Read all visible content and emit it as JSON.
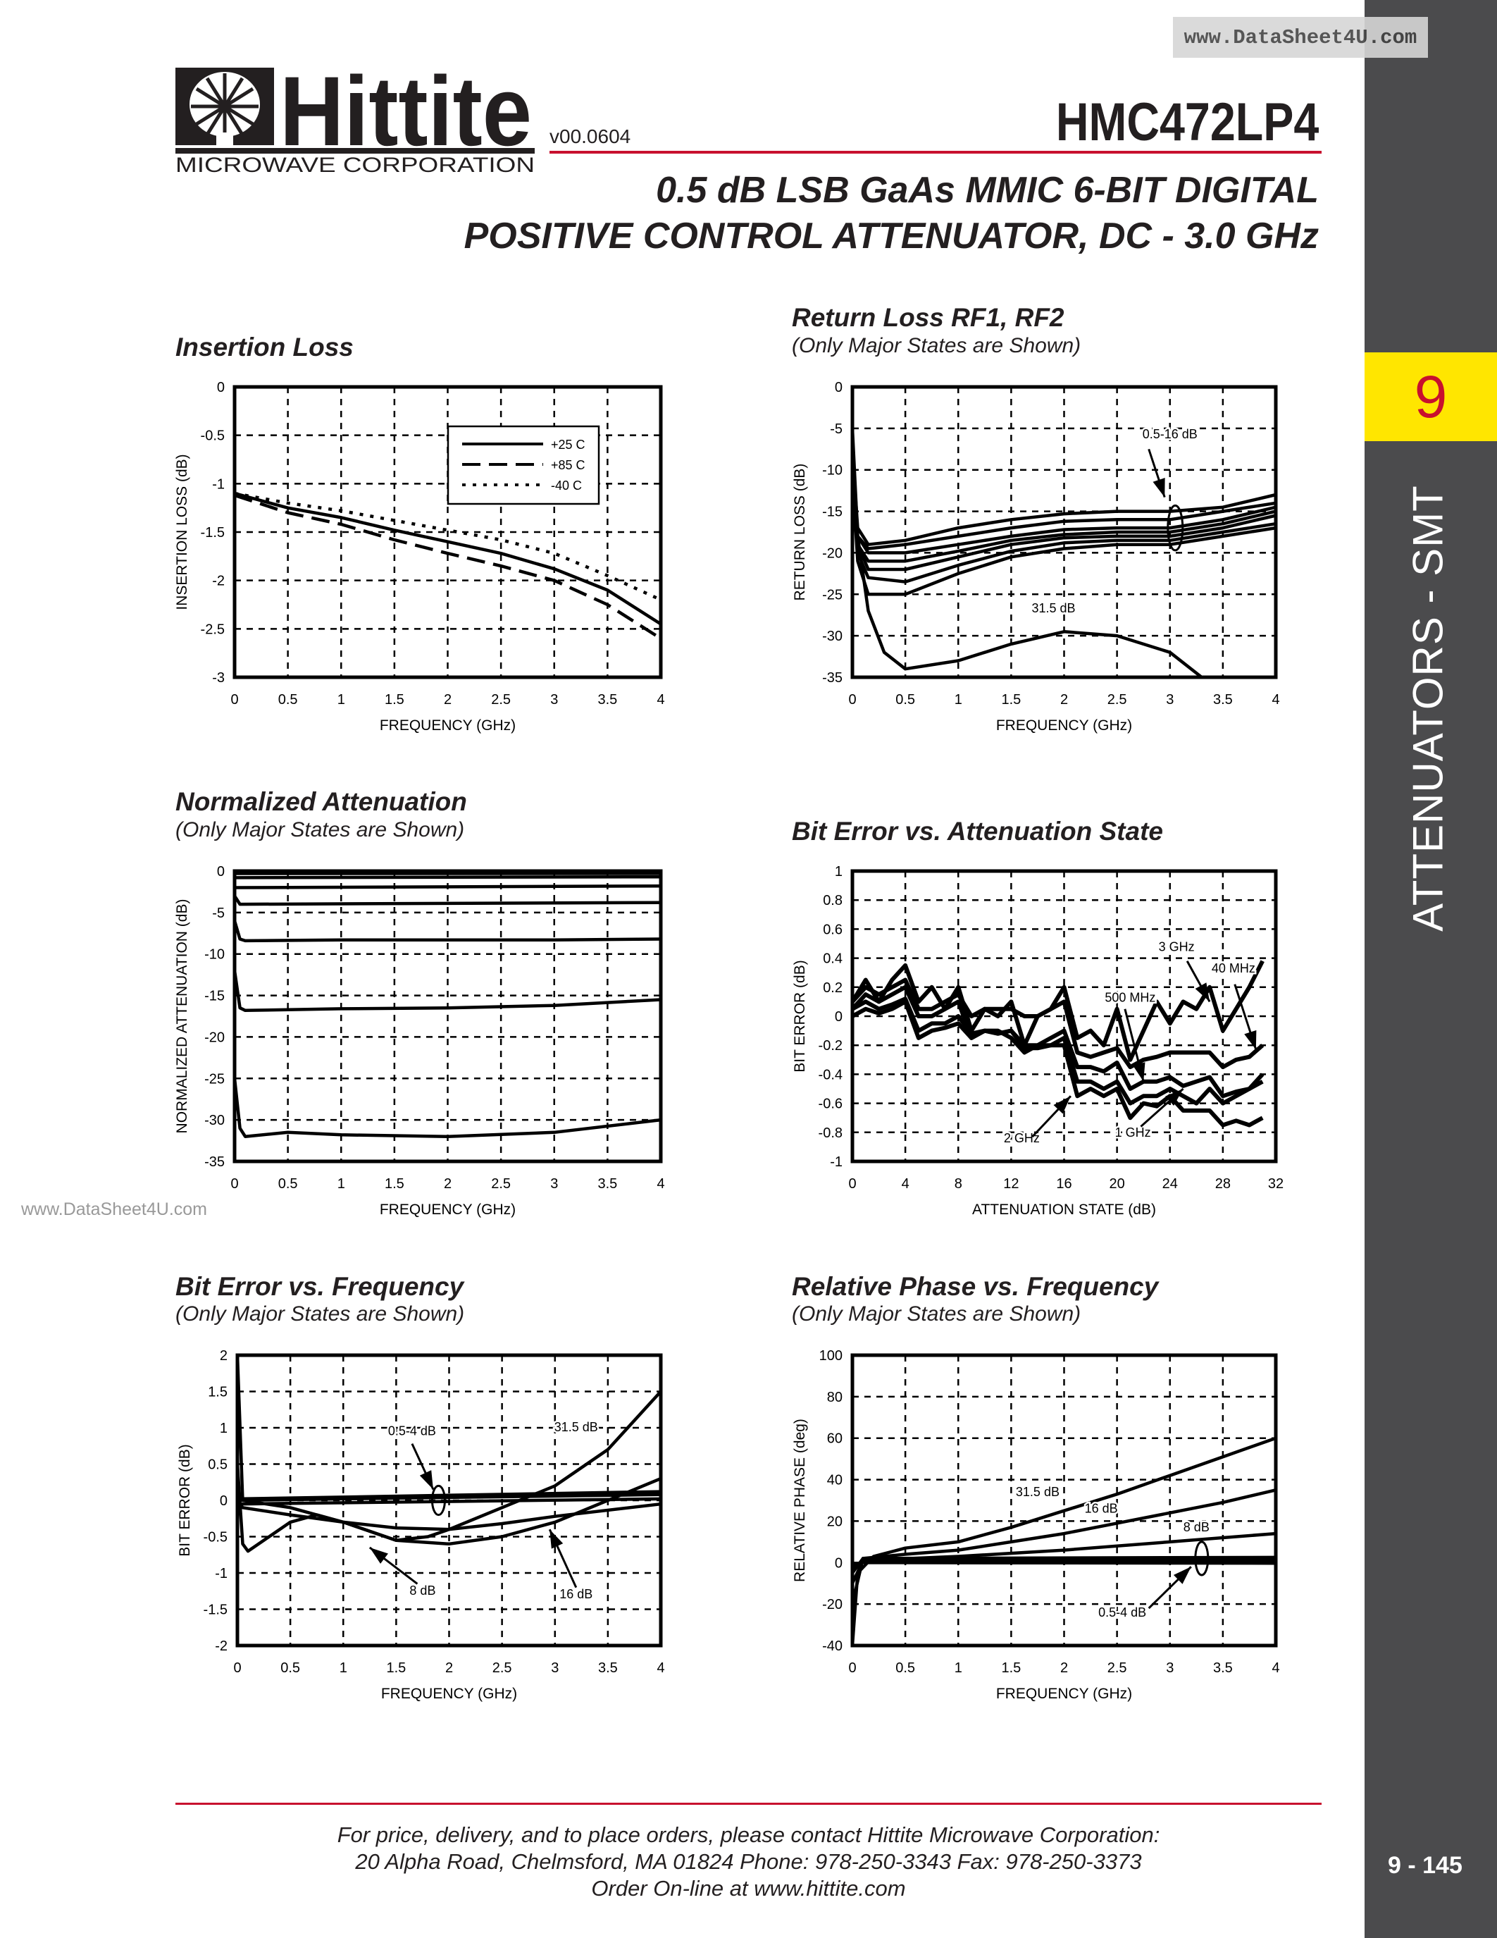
{
  "header": {
    "logo_text": "Hittite",
    "logo_subtext": "MICROWAVE CORPORATION",
    "version": "v00.0604",
    "part_number": "HMC472LP4",
    "title_line1": "0.5 dB LSB GaAs MMIC 6-BIT DIGITAL",
    "title_line2": "POSITIVE CONTROL ATTENUATOR, DC - 3.0 GHz"
  },
  "watermark": "www.DataSheet4U.com",
  "sidebar": {
    "section_number": "9",
    "section_label": "ATTENUATORS - SMT",
    "page_number": "9 - 145",
    "section_color": "#ffe600",
    "bar_color": "#4b4b4d"
  },
  "footer": {
    "line1": "For price, delivery, and to place orders, please contact Hittite Microwave Corporation:",
    "line2": "20 Alpha Road, Chelmsford, MA 01824 Phone: 978-250-3343  Fax: 978-250-3373",
    "line3": "Order On-line at www.hittite.com"
  },
  "chart_data": [
    {
      "title": "Insertion Loss",
      "subtitle": "",
      "type": "line",
      "xlabel": "FREQUENCY (GHz)",
      "ylabel": "INSERTION LOSS (dB)",
      "xlim": [
        0,
        4
      ],
      "ylim": [
        -3,
        0
      ],
      "grid": true,
      "xticks": [
        "0",
        "0.5",
        "1",
        "1.5",
        "2",
        "2.5",
        "3",
        "3.5",
        "4"
      ],
      "yticks": [
        "0",
        "-0.5",
        "-1",
        "-1.5",
        "-2",
        "-2.5",
        "-3"
      ],
      "legend": "top-right",
      "series": [
        {
          "name": "+25 C",
          "style": "solid",
          "x": [
            0,
            0.5,
            1,
            1.5,
            2,
            2.5,
            3,
            3.5,
            4
          ],
          "y": [
            -1.1,
            -1.25,
            -1.35,
            -1.48,
            -1.6,
            -1.72,
            -1.88,
            -2.1,
            -2.45
          ]
        },
        {
          "name": "+85 C",
          "style": "dashed",
          "x": [
            0,
            0.5,
            1,
            1.5,
            2,
            2.5,
            3,
            3.5,
            4
          ],
          "y": [
            -1.12,
            -1.3,
            -1.42,
            -1.58,
            -1.72,
            -1.85,
            -2.0,
            -2.25,
            -2.6
          ]
        },
        {
          "name": "-40 C",
          "style": "dotted",
          "x": [
            0,
            0.5,
            1,
            1.5,
            2,
            2.5,
            3,
            3.5,
            4
          ],
          "y": [
            -1.1,
            -1.2,
            -1.28,
            -1.38,
            -1.48,
            -1.58,
            -1.72,
            -1.95,
            -2.2
          ]
        }
      ],
      "annotations": []
    },
    {
      "title": "Return Loss RF1, RF2",
      "subtitle": "(Only Major States are Shown)",
      "type": "line",
      "xlabel": "FREQUENCY (GHz)",
      "ylabel": "RETURN LOSS (dB)",
      "xlim": [
        0,
        4
      ],
      "ylim": [
        -35,
        0
      ],
      "grid": true,
      "xticks": [
        "0",
        "0.5",
        "1",
        "1.5",
        "2",
        "2.5",
        "3",
        "3.5",
        "4"
      ],
      "yticks": [
        "0",
        "-5",
        "-10",
        "-15",
        "-20",
        "-25",
        "-30",
        "-35"
      ],
      "series": [
        {
          "style": "solid",
          "x": [
            0,
            0.05,
            0.15,
            0.5,
            1,
            1.5,
            2,
            2.5,
            3,
            3.5,
            4
          ],
          "y": [
            -8,
            -17,
            -19,
            -18.5,
            -17,
            -16,
            -15.3,
            -15,
            -15,
            -14.5,
            -13
          ]
        },
        {
          "style": "solid",
          "x": [
            0,
            0.05,
            0.15,
            0.5,
            1,
            1.5,
            2,
            2.5,
            3,
            3.5,
            4
          ],
          "y": [
            -9,
            -18,
            -19.5,
            -19,
            -18,
            -17,
            -16.2,
            -16,
            -16,
            -15,
            -14
          ]
        },
        {
          "style": "solid",
          "x": [
            0,
            0.05,
            0.15,
            0.5,
            1,
            1.5,
            2,
            2.5,
            3,
            3.5,
            4
          ],
          "y": [
            -9,
            -18,
            -20,
            -20,
            -19,
            -18,
            -17.2,
            -17,
            -17,
            -16,
            -14.5
          ]
        },
        {
          "style": "solid",
          "x": [
            0,
            0.05,
            0.15,
            0.5,
            1,
            1.5,
            2,
            2.5,
            3,
            3.5,
            4
          ],
          "y": [
            -10,
            -19,
            -21,
            -21,
            -19.8,
            -18.5,
            -17.8,
            -17.5,
            -17.5,
            -16.5,
            -15
          ]
        },
        {
          "style": "solid",
          "x": [
            0,
            0.05,
            0.15,
            0.5,
            1,
            1.5,
            2,
            2.5,
            3,
            3.5,
            4
          ],
          "y": [
            -10,
            -19,
            -22,
            -22,
            -20.5,
            -19,
            -18.2,
            -18,
            -18,
            -17,
            -15.5
          ]
        },
        {
          "style": "solid",
          "x": [
            0,
            0.05,
            0.15,
            0.5,
            1,
            1.5,
            2,
            2.5,
            3,
            3.5,
            4
          ],
          "y": [
            -10,
            -20,
            -23,
            -23.5,
            -21.5,
            -19.8,
            -18.8,
            -18.5,
            -18.5,
            -17.5,
            -16.5
          ]
        },
        {
          "style": "solid",
          "x": [
            0,
            0.05,
            0.15,
            0.5,
            1,
            1.5,
            2,
            2.5,
            3,
            3.5,
            4
          ],
          "y": [
            -11,
            -21,
            -25,
            -25,
            -22.5,
            -20.5,
            -19.5,
            -19,
            -19,
            -18,
            -17
          ]
        },
        {
          "style": "solid",
          "x": [
            0,
            0.05,
            0.15,
            0.3,
            0.5,
            1,
            1.5,
            2,
            2.5,
            3,
            3.3
          ],
          "y": [
            -5,
            -18,
            -27,
            -32,
            -34,
            -33,
            -31,
            -29.5,
            -30,
            -32,
            -35
          ]
        }
      ],
      "annotations": [
        "0.5-16 dB",
        "31.5 dB"
      ]
    },
    {
      "title": "Normalized Attenuation",
      "subtitle": "(Only Major States are Shown)",
      "type": "line",
      "xlabel": "FREQUENCY (GHz)",
      "ylabel": "NORMALIZED ATTENUATION (dB)",
      "xlim": [
        0,
        4
      ],
      "ylim": [
        -35,
        0
      ],
      "grid": true,
      "xticks": [
        "0",
        "0.5",
        "1",
        "1.5",
        "2",
        "2.5",
        "3",
        "3.5",
        "4"
      ],
      "yticks": [
        "0",
        "-5",
        "-10",
        "-15",
        "-20",
        "-25",
        "-30",
        "-35"
      ],
      "series": [
        {
          "style": "solid",
          "x": [
            0,
            4
          ],
          "y": [
            -0.3,
            -0.3
          ]
        },
        {
          "style": "solid",
          "x": [
            0,
            4
          ],
          "y": [
            -0.8,
            -0.7
          ]
        },
        {
          "style": "solid",
          "x": [
            0,
            4
          ],
          "y": [
            -2,
            -1.8
          ]
        },
        {
          "style": "solid",
          "x": [
            0,
            0.05,
            4
          ],
          "y": [
            -3,
            -4,
            -3.8
          ]
        },
        {
          "style": "solid",
          "x": [
            0,
            0.05,
            0.1,
            1,
            2,
            3,
            4
          ],
          "y": [
            -6,
            -8.2,
            -8.4,
            -8.3,
            -8.3,
            -8.3,
            -8.2
          ]
        },
        {
          "style": "solid",
          "x": [
            0,
            0.05,
            0.1,
            1,
            2,
            3,
            4
          ],
          "y": [
            -12,
            -16.5,
            -16.8,
            -16.6,
            -16.5,
            -16.2,
            -15.5
          ]
        },
        {
          "style": "solid",
          "x": [
            0,
            0.05,
            0.1,
            0.5,
            1,
            2,
            3,
            4
          ],
          "y": [
            -25,
            -31,
            -32,
            -31.5,
            -31.8,
            -32,
            -31.5,
            -30
          ]
        }
      ],
      "annotations": []
    },
    {
      "title": "Bit Error vs. Attenuation State",
      "subtitle": "",
      "type": "line",
      "xlabel": "ATTENUATION STATE (dB)",
      "ylabel": "BIT ERROR (dB)",
      "xlim": [
        0,
        32
      ],
      "ylim": [
        -1,
        1
      ],
      "grid": true,
      "xticks": [
        "0",
        "4",
        "8",
        "12",
        "16",
        "20",
        "24",
        "28",
        "32"
      ],
      "yticks": [
        "1",
        "0.8",
        "0.6",
        "0.4",
        "0.2",
        "0",
        "-0.2",
        "-0.4",
        "-0.6",
        "-0.8",
        "-1"
      ],
      "series": [
        {
          "name": "3 GHz",
          "style": "solid",
          "x": "0..31",
          "y": [
            0.1,
            0.25,
            0.1,
            0.25,
            0.35,
            0.1,
            0.2,
            0.05,
            0.2,
            -0.1,
            0.05,
            0.0,
            0.1,
            -0.2,
            0.0,
            0.05,
            0.2,
            -0.15,
            -0.1,
            -0.2,
            0.05,
            -0.3,
            -0.1,
            0.1,
            -0.05,
            0.1,
            0.05,
            0.2,
            -0.1,
            0.05,
            0.2,
            0.38
          ]
        },
        {
          "name": "2 GHz",
          "style": "solid",
          "x": "0..31",
          "y": [
            0.1,
            0.2,
            0.15,
            0.2,
            0.25,
            0.05,
            0.05,
            0.1,
            0.15,
            0.0,
            0.05,
            0.05,
            0.05,
            0.0,
            0.0,
            0.05,
            0.1,
            -0.25,
            -0.28,
            -0.25,
            -0.22,
            -0.35,
            -0.3,
            -0.28,
            -0.25,
            -0.25,
            -0.25,
            -0.25,
            -0.35,
            -0.3,
            -0.28,
            -0.2
          ]
        },
        {
          "name": "1 GHz",
          "style": "solid",
          "x": "0..31",
          "y": [
            0.05,
            0.15,
            0.1,
            0.15,
            0.2,
            0.0,
            0.0,
            0.05,
            0.1,
            -0.15,
            -0.1,
            -0.12,
            -0.1,
            -0.2,
            -0.2,
            -0.15,
            -0.1,
            -0.35,
            -0.35,
            -0.38,
            -0.32,
            -0.5,
            -0.45,
            -0.45,
            -0.42,
            -0.48,
            -0.45,
            -0.42,
            -0.55,
            -0.52,
            -0.5,
            -0.45
          ]
        },
        {
          "name": "500 MHz",
          "style": "solid",
          "x": "0..31",
          "y": [
            0.05,
            0.1,
            0.05,
            0.08,
            0.12,
            -0.1,
            -0.05,
            -0.05,
            0.0,
            -0.12,
            -0.1,
            -0.12,
            -0.1,
            -0.22,
            -0.22,
            -0.2,
            -0.15,
            -0.45,
            -0.45,
            -0.5,
            -0.45,
            -0.6,
            -0.55,
            -0.55,
            -0.5,
            -0.55,
            -0.6,
            -0.5,
            -0.6,
            -0.55,
            -0.5,
            -0.4
          ]
        },
        {
          "name": "40 MHz",
          "style": "solid",
          "x": "0..31",
          "y": [
            0.0,
            0.05,
            0.02,
            0.05,
            0.1,
            -0.15,
            -0.1,
            -0.08,
            -0.05,
            -0.15,
            -0.1,
            -0.1,
            -0.15,
            -0.25,
            -0.2,
            -0.2,
            -0.2,
            -0.55,
            -0.5,
            -0.55,
            -0.5,
            -0.7,
            -0.6,
            -0.62,
            -0.55,
            -0.65,
            -0.65,
            -0.65,
            -0.75,
            -0.72,
            -0.75,
            -0.7
          ]
        }
      ],
      "annotations": [
        "3 GHz",
        "40 MHz",
        "500 MHz",
        "2 GHz",
        "1 GHz"
      ]
    },
    {
      "title": "Bit Error vs. Frequency",
      "subtitle": "(Only Major States are Shown)",
      "type": "line",
      "xlabel": "FREQUENCY (GHz)",
      "ylabel": "BIT ERROR (dB)",
      "xlim": [
        0,
        4
      ],
      "ylim": [
        -2,
        2
      ],
      "grid": true,
      "xticks": [
        "0",
        "0.5",
        "1",
        "1.5",
        "2",
        "2.5",
        "3",
        "3.5",
        "4"
      ],
      "yticks": [
        "2",
        "1.5",
        "1",
        "0.5",
        "0",
        "-0.5",
        "-1",
        "-1.5",
        "-2"
      ],
      "series": [
        {
          "style": "solid",
          "x": [
            0,
            4
          ],
          "y": [
            0.02,
            0.12
          ]
        },
        {
          "style": "solid",
          "x": [
            0,
            4
          ],
          "y": [
            0,
            0.08
          ]
        },
        {
          "style": "solid",
          "x": [
            0,
            4
          ],
          "y": [
            -0.05,
            0.02
          ]
        },
        {
          "style": "solid",
          "x": [
            0,
            0.05,
            0.1,
            0.3,
            0.5,
            0.75,
            1,
            1.5,
            2,
            2.5,
            3,
            3.5,
            4
          ],
          "y": [
            0.5,
            -0.6,
            -0.7,
            -0.5,
            -0.3,
            -0.2,
            -0.3,
            -0.55,
            -0.6,
            -0.5,
            -0.3,
            0.0,
            0.3
          ]
        },
        {
          "style": "solid",
          "x": [
            0,
            0.05,
            0.5,
            1,
            1.5,
            2,
            2.5,
            3,
            4
          ],
          "y": [
            0,
            -0.1,
            -0.2,
            -0.3,
            -0.38,
            -0.4,
            -0.32,
            -0.22,
            -0.05
          ]
        },
        {
          "style": "solid",
          "x": [
            0,
            0.05,
            0.5,
            1,
            1.5,
            1.8,
            2,
            2.5,
            3,
            3.5,
            4
          ],
          "y": [
            2,
            0,
            -0.1,
            -0.3,
            -0.55,
            -0.5,
            -0.4,
            -0.1,
            0.2,
            0.7,
            1.5
          ]
        }
      ],
      "annotations": [
        "0.5-4 dB",
        "31.5 dB",
        "8 dB",
        "16 dB"
      ]
    },
    {
      "title": "Relative Phase vs. Frequency",
      "subtitle": "(Only Major States are Shown)",
      "type": "line",
      "xlabel": "FREQUENCY (GHz)",
      "ylabel": "RELATIVE PHASE (deg)",
      "xlim": [
        0,
        4
      ],
      "ylim": [
        -40,
        100
      ],
      "grid": true,
      "xticks": [
        "0",
        "0.5",
        "1",
        "1.5",
        "2",
        "2.5",
        "3",
        "3.5",
        "4"
      ],
      "yticks": [
        "100",
        "80",
        "60",
        "40",
        "20",
        "0",
        "-20",
        "-40"
      ],
      "series": [
        {
          "style": "solid",
          "x": [
            0,
            0.05,
            0.2,
            0.5,
            1,
            1.5,
            2,
            2.5,
            3,
            3.5,
            4
          ],
          "y": [
            -40,
            -5,
            3,
            7,
            10,
            17,
            25,
            33,
            42,
            51,
            60
          ]
        },
        {
          "style": "solid",
          "x": [
            0,
            0.1,
            0.5,
            1,
            1.5,
            2,
            2.5,
            3,
            3.5,
            4
          ],
          "y": [
            -20,
            2,
            4,
            6,
            10,
            14,
            19,
            24,
            29,
            35
          ]
        },
        {
          "style": "solid",
          "x": [
            0,
            0.1,
            1,
            2,
            3,
            4
          ],
          "y": [
            -10,
            1,
            3,
            6,
            10,
            14
          ]
        },
        {
          "style": "solid",
          "x": [
            0,
            0.1,
            4
          ],
          "y": [
            -5,
            2,
            2.5
          ]
        },
        {
          "style": "solid",
          "x": [
            0,
            0.1,
            4
          ],
          "y": [
            -3,
            1,
            1.5
          ]
        },
        {
          "style": "solid",
          "x": [
            0,
            0.1,
            4
          ],
          "y": [
            -2,
            0.5,
            0.5
          ]
        },
        {
          "style": "solid",
          "x": [
            0,
            0.1,
            4
          ],
          "y": [
            -1,
            0,
            -0.3
          ]
        }
      ],
      "annotations": [
        "31.5 dB",
        "16 dB",
        "8 dB",
        "0.5-4 dB"
      ]
    }
  ]
}
